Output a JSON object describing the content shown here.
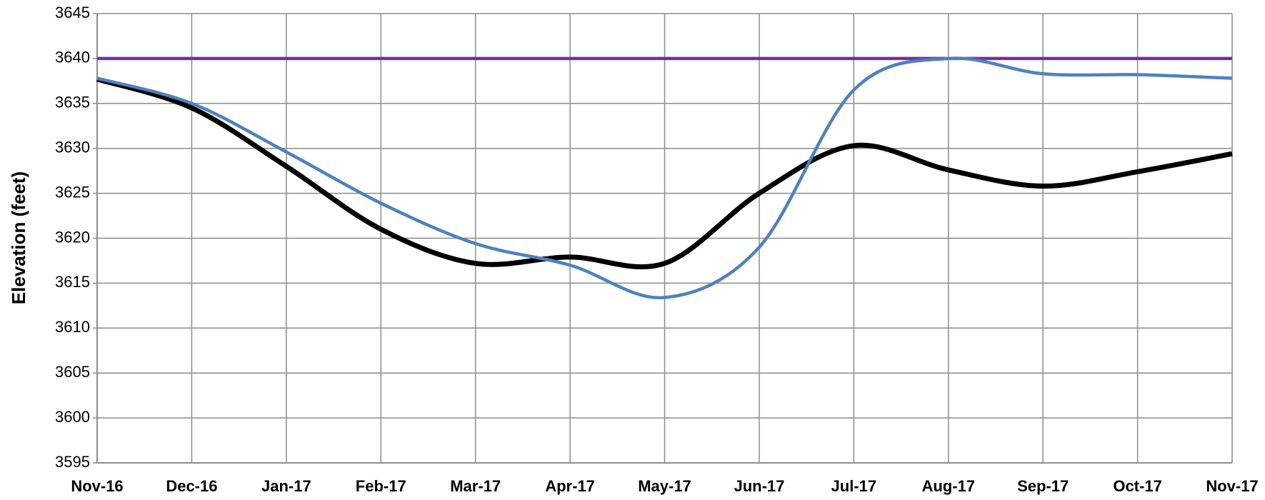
{
  "chart_data": {
    "type": "line",
    "y_label": "Elevation (feet)",
    "categories": [
      "Nov-16",
      "Dec-16",
      "Jan-17",
      "Feb-17",
      "Mar-17",
      "Apr-17",
      "May-17",
      "Jun-17",
      "Jul-17",
      "Aug-17",
      "Sep-17",
      "Oct-17",
      "Nov-17"
    ],
    "series": [
      {
        "color": "#7030a0",
        "values": [
          3640,
          3640,
          3640,
          3640,
          3640,
          3640,
          3640,
          3640,
          3640,
          3640,
          3640,
          3640,
          3640
        ]
      },
      {
        "color": "#000000",
        "values": [
          3637.7,
          3634.5,
          3628,
          3621,
          3617.2,
          3617.9,
          3617.2,
          3625,
          3630.3,
          3627.6,
          3625.8,
          3627.4,
          3629.4
        ]
      },
      {
        "color": "#4f81bd",
        "values": [
          3637.8,
          3635,
          3629.6,
          3623.9,
          3619.4,
          3617,
          3613.4,
          3619,
          3636.5,
          3640,
          3638.3,
          3638.2,
          3637.8
        ]
      }
    ],
    "ylim": [
      3595,
      3645
    ],
    "yticks": [
      3595,
      3600,
      3605,
      3610,
      3615,
      3620,
      3625,
      3630,
      3635,
      3640,
      3645
    ],
    "grid": true
  }
}
